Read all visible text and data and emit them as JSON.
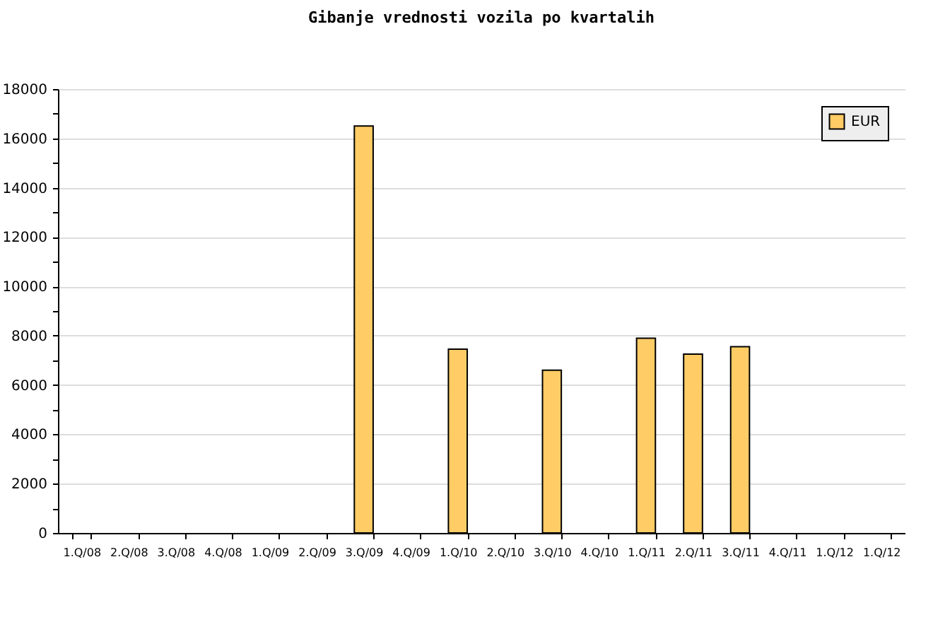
{
  "chart_data": {
    "type": "bar",
    "title": "Gibanje vrednosti vozila po kvartalih",
    "categories": [
      "1.Q/08",
      "2.Q/08",
      "3.Q/08",
      "4.Q/08",
      "1.Q/09",
      "2.Q/09",
      "3.Q/09",
      "4.Q/09",
      "1.Q/10",
      "2.Q/10",
      "3.Q/10",
      "4.Q/10",
      "1.Q/11",
      "2.Q/11",
      "3.Q/11",
      "4.Q/11",
      "1.Q/12",
      "1.Q/12"
    ],
    "series": [
      {
        "name": "EUR",
        "color": "#ffcc66",
        "values": [
          null,
          null,
          null,
          null,
          null,
          null,
          16500,
          null,
          7450,
          null,
          6600,
          null,
          7900,
          7250,
          7550,
          null,
          null,
          null
        ]
      }
    ],
    "ylim": [
      0,
      18000
    ],
    "yticks": [
      0,
      {
        "value": 1000,
        "label": null
      },
      2000,
      {
        "value": 3000,
        "label": null
      },
      4000,
      {
        "value": 5000,
        "label": null
      },
      6000,
      {
        "value": 7000,
        "label": null
      },
      8000,
      {
        "value": 9000,
        "label": null
      },
      10000,
      {
        "value": 11000,
        "label": null
      },
      12000,
      {
        "value": 13000,
        "label": null
      },
      14000,
      {
        "value": 15000,
        "label": null
      },
      16000,
      {
        "value": 17000,
        "label": null
      },
      18000
    ],
    "grid": "y",
    "legend": "top right"
  }
}
